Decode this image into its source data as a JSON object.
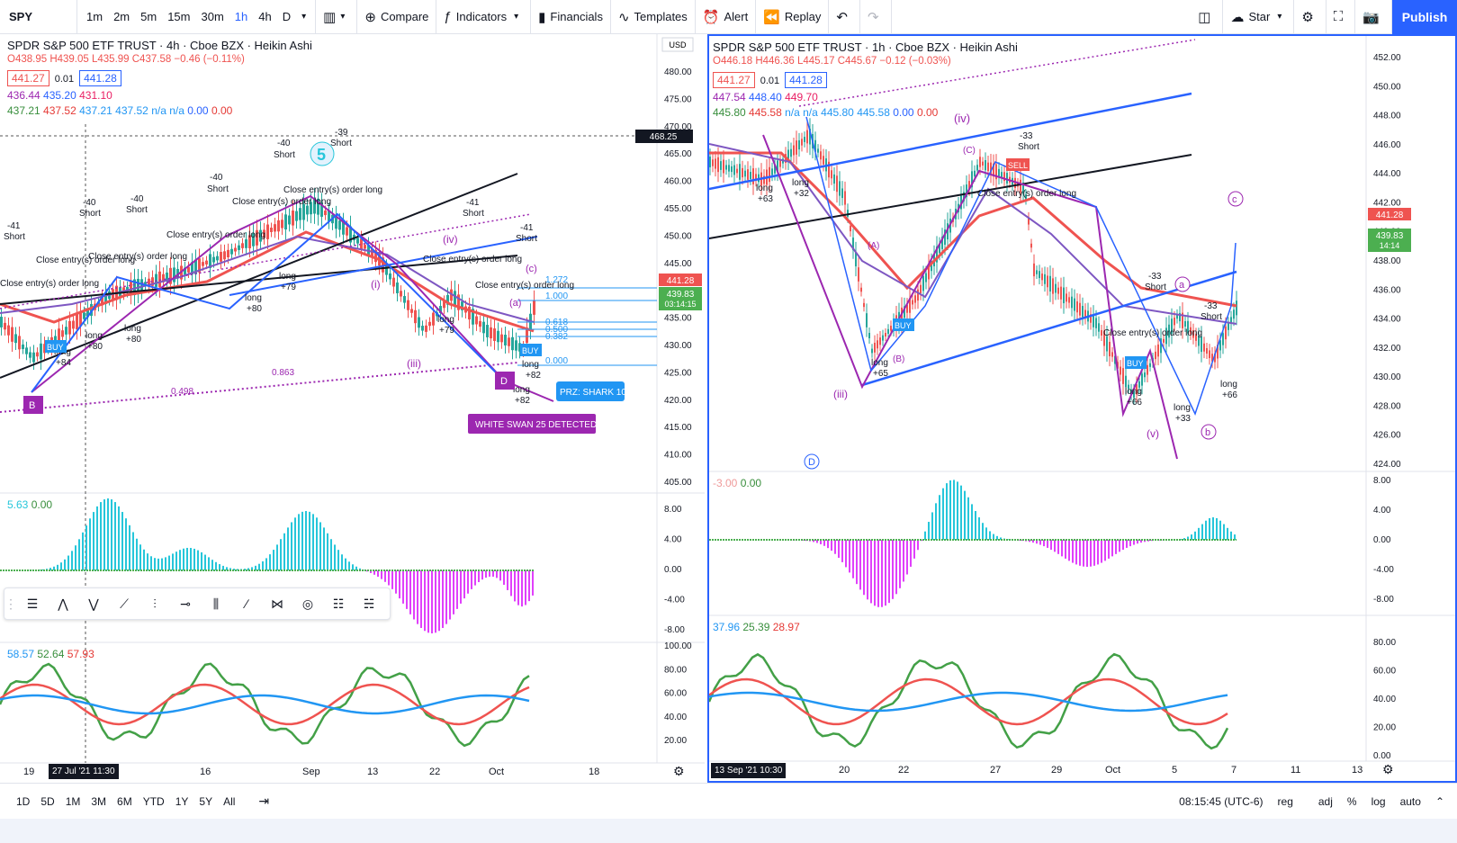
{
  "toolbar": {
    "symbol": "SPY",
    "intervals": [
      "1m",
      "2m",
      "5m",
      "15m",
      "30m",
      "1h",
      "4h",
      "D"
    ],
    "active_interval": "1h",
    "compare": "Compare",
    "indicators": "Indicators",
    "financials": "Financials",
    "templates": "Templates",
    "alert": "Alert",
    "replay": "Replay",
    "star": "Star",
    "publish": "Publish"
  },
  "left_chart": {
    "title": "SPDR S&P 500 ETF TRUST · 4h · Cboe BZX · Heikin Ashi",
    "ohlc": "O438.95 H439.05 L435.99 C437.58 −0.46 (−0.11%)",
    "bid": "441.27",
    "step": "0.01",
    "ask": "441.28",
    "ma_row1": [
      "436.44",
      "435.20",
      "431.10"
    ],
    "ma_row2": [
      "437.21",
      "437.52",
      "437.21",
      "437.52",
      "n/a",
      "n/a",
      "0.00",
      "0.00"
    ],
    "currency": "USD",
    "crosshair_price": "468.25",
    "last_price": "441.28",
    "last_price2": "439.83",
    "countdown": "03:14:15",
    "price_ticks": [
      "480.00",
      "475.00",
      "470.00",
      "465.00",
      "460.00",
      "455.00",
      "450.00",
      "445.00",
      "440.00",
      "435.00",
      "430.00",
      "425.00",
      "420.00",
      "415.00",
      "410.00",
      "405.00"
    ],
    "osc1_legend": [
      "5.63",
      "0.00"
    ],
    "osc1_ticks": [
      "8.00",
      "4.00",
      "0.00",
      "-4.00",
      "-8.00"
    ],
    "osc2_legend": [
      "58.57",
      "52.64",
      "57.93"
    ],
    "osc2_ticks": [
      "100.00",
      "80.00",
      "60.00",
      "40.00",
      "20.00"
    ],
    "date_ticks": [
      "19",
      "16",
      "Sep",
      "13",
      "22",
      "Oct",
      "18"
    ],
    "crosshair_date": "27 Jul '21   11:30",
    "labels": {
      "prz": "PRZ: SHARK 10",
      "swan": "WHITE SWAN 25 DETECTED",
      "short": "Short",
      "long": "long",
      "close_entry": "Close entry(s) order long",
      "buy": "BUY",
      "wave5": "5",
      "fib1": "1.272",
      "fib2": "1.000",
      "fib3": "0.618",
      "fib4": "0.500",
      "fib5": "0.382",
      "fib6": "0.000",
      "fib7": "0.863",
      "fib8": "0.498",
      "neg41": "-41",
      "neg40": "-40",
      "neg39": "-39",
      "pos80": "+80",
      "pos84": "+84",
      "pos79": "+79",
      "pos82": "+82",
      "wave_iii": "(iii)",
      "wave_iv": "(iv)",
      "wave_i": "(i)",
      "wave_a": "(a)",
      "wave_c": "(c)",
      "pt_b": "B",
      "pt_d": "D"
    }
  },
  "right_chart": {
    "title": "SPDR S&P 500 ETF TRUST · 1h · Cboe BZX · Heikin Ashi",
    "ohlc": "O446.18 H446.36 L445.17 C445.67 −0.12 (−0.03%)",
    "bid": "441.27",
    "step": "0.01",
    "ask": "441.28",
    "ma_row1": [
      "447.54",
      "448.40",
      "449.70"
    ],
    "ma_row2": [
      "445.80",
      "445.58",
      "n/a",
      "n/a",
      "445.80",
      "445.58",
      "0.00",
      "0.00"
    ],
    "last_price": "441.28",
    "last_price2": "439.83",
    "countdown": "14:14",
    "price_ticks": [
      "452.00",
      "450.00",
      "448.00",
      "446.00",
      "444.00",
      "442.00",
      "440.00",
      "438.00",
      "436.00",
      "434.00",
      "432.00",
      "430.00",
      "428.00",
      "426.00",
      "424.00"
    ],
    "osc1_legend": [
      "-3.00",
      "0.00"
    ],
    "osc1_ticks": [
      "8.00",
      "4.00",
      "0.00",
      "-4.00",
      "-8.00"
    ],
    "osc2_legend": [
      "37.96",
      "25.39",
      "28.97"
    ],
    "osc2_ticks": [
      "80.00",
      "60.00",
      "40.00",
      "20.00",
      "0.00"
    ],
    "date_ticks": [
      "20",
      "22",
      "27",
      "29",
      "Oct",
      "5",
      "7",
      "11",
      "13"
    ],
    "crosshair_date": "13 Sep '21   10:30",
    "labels": {
      "short": "Short",
      "long": "long",
      "close_entry": "Close entry(s) order long",
      "buy": "BUY",
      "sell": "SELL",
      "neg33": "-33",
      "pos63": "+63",
      "pos32": "+32",
      "pos65": "+65",
      "pos66": "+66",
      "pos33": "+33",
      "wave_iv": "(iv)",
      "wave_iii": "(iii)",
      "wave_v": "(v)",
      "wave_A": "(A)",
      "wave_B": "(B)",
      "wave_C": "(C)",
      "pt_a": "a",
      "pt_b": "b",
      "pt_c": "c",
      "pt_D": "D"
    }
  },
  "bottom": {
    "ranges": [
      "1D",
      "5D",
      "1M",
      "3M",
      "6M",
      "YTD",
      "1Y",
      "5Y",
      "All"
    ],
    "time": "08:15:45 (UTC-6)",
    "reg": "reg",
    "adj": "adj",
    "pct": "%",
    "log": "log",
    "auto": "auto"
  }
}
